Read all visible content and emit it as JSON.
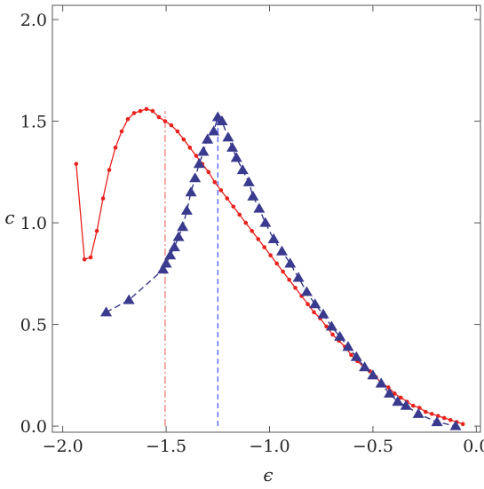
{
  "chart_data": {
    "type": "line",
    "title": "",
    "xlabel": "ϵ",
    "ylabel": "c",
    "xlim": [
      -2.05,
      0.02
    ],
    "ylim": [
      -0.03,
      2.07
    ],
    "xticks": [
      -2.0,
      -1.5,
      -1.0,
      -0.5,
      0.0
    ],
    "xtick_labels": [
      "−2.0",
      "−1.5",
      "−1.0",
      "−0.5",
      "0.0"
    ],
    "yticks": [
      0.0,
      0.5,
      1.0,
      1.5,
      2.0
    ],
    "ytick_labels": [
      "0.0",
      "0.5",
      "1.0",
      "1.5",
      "2.0"
    ],
    "grid": false,
    "series": [
      {
        "color": "#e8211c",
        "line_style": "solid",
        "marker": "dot",
        "x": [
          -1.935,
          -1.895,
          -1.865,
          -1.835,
          -1.805,
          -1.775,
          -1.745,
          -1.715,
          -1.685,
          -1.655,
          -1.625,
          -1.595,
          -1.565,
          -1.535,
          -1.505,
          -1.475,
          -1.445,
          -1.415,
          -1.385,
          -1.355,
          -1.325,
          -1.295,
          -1.265,
          -1.235,
          -1.205,
          -1.175,
          -1.145,
          -1.115,
          -1.085,
          -1.055,
          -1.025,
          -0.995,
          -0.965,
          -0.935,
          -0.905,
          -0.875,
          -0.845,
          -0.815,
          -0.785,
          -0.755,
          -0.725,
          -0.695,
          -0.665,
          -0.635,
          -0.605,
          -0.575,
          -0.545,
          -0.515,
          -0.485,
          -0.455,
          -0.425,
          -0.395,
          -0.365,
          -0.335,
          -0.305,
          -0.275,
          -0.245,
          -0.215,
          -0.185,
          -0.155,
          -0.125,
          -0.095,
          -0.065
        ],
        "y": [
          1.29,
          0.82,
          0.83,
          0.96,
          1.12,
          1.26,
          1.37,
          1.45,
          1.51,
          1.54,
          1.55,
          1.56,
          1.55,
          1.52,
          1.5,
          1.48,
          1.45,
          1.41,
          1.37,
          1.33,
          1.29,
          1.25,
          1.2,
          1.16,
          1.12,
          1.08,
          1.04,
          1.0,
          0.96,
          0.92,
          0.88,
          0.84,
          0.8,
          0.76,
          0.72,
          0.68,
          0.64,
          0.6,
          0.56,
          0.53,
          0.49,
          0.45,
          0.42,
          0.39,
          0.35,
          0.32,
          0.29,
          0.27,
          0.24,
          0.21,
          0.19,
          0.16,
          0.14,
          0.12,
          0.1,
          0.09,
          0.07,
          0.06,
          0.05,
          0.04,
          0.03,
          0.02,
          0.01
        ]
      },
      {
        "color": "#3a3a8e",
        "line_color": "#2b2b82",
        "line_style": "dashed",
        "marker": "triangle",
        "x": [
          -1.79,
          -1.68,
          -1.515,
          -1.5,
          -1.48,
          -1.46,
          -1.44,
          -1.42,
          -1.4,
          -1.38,
          -1.36,
          -1.34,
          -1.32,
          -1.3,
          -1.27,
          -1.25,
          -1.23,
          -1.2,
          -1.18,
          -1.16,
          -1.13,
          -1.1,
          -1.08,
          -1.05,
          -1.02,
          -0.98,
          -0.94,
          -0.9,
          -0.86,
          -0.82,
          -0.78,
          -0.74,
          -0.7,
          -0.66,
          -0.62,
          -0.58,
          -0.54,
          -0.5,
          -0.46,
          -0.42,
          -0.38,
          -0.34,
          -0.28,
          -0.19,
          -0.1
        ],
        "y": [
          0.56,
          0.62,
          0.77,
          0.8,
          0.84,
          0.88,
          0.93,
          0.98,
          1.06,
          1.15,
          1.22,
          1.29,
          1.35,
          1.41,
          1.45,
          1.52,
          1.5,
          1.42,
          1.37,
          1.32,
          1.26,
          1.2,
          1.13,
          1.07,
          1.0,
          0.92,
          0.86,
          0.8,
          0.73,
          0.66,
          0.6,
          0.55,
          0.49,
          0.44,
          0.39,
          0.34,
          0.29,
          0.25,
          0.21,
          0.16,
          0.12,
          0.1,
          0.06,
          0.02,
          0.0
        ]
      }
    ],
    "reference_lines": [
      {
        "x": -1.505,
        "color": "#ee6e66",
        "line_style": "dashdot"
      },
      {
        "x": -1.25,
        "color": "#3b4ff0",
        "line_style": "dashed"
      }
    ]
  }
}
